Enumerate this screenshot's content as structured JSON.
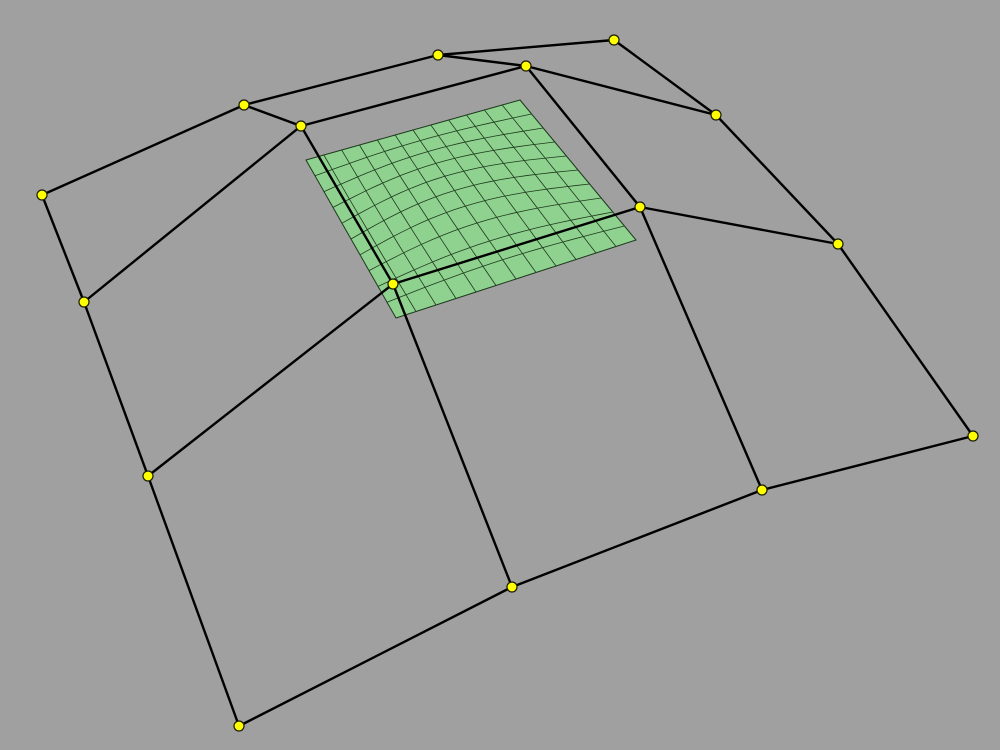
{
  "viewport": {
    "background": "#a0a0a0"
  },
  "colors": {
    "control_line": "#000000",
    "control_point_fill": "#ffff00",
    "control_point_stroke": "#1a1a00",
    "surface_fill": "#8fd18f",
    "surface_grid": "#1e3a1e"
  },
  "control_net": {
    "rows": 4,
    "cols": 4
  },
  "surface_patch": {
    "u_divisions": 12,
    "v_divisions": 10
  }
}
